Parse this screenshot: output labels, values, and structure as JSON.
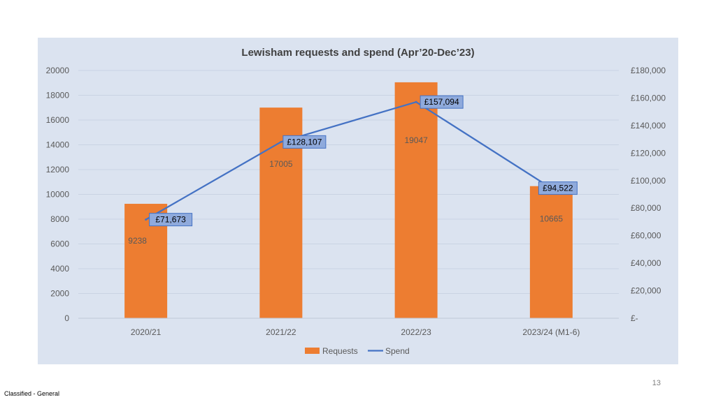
{
  "chart_data": {
    "type": "bar",
    "title": "Lewisham requests and spend (Apr’20-Dec’23)",
    "categories": [
      "2020/21",
      "2021/22",
      "2022/23",
      "2023/24 (M1-6)"
    ],
    "series": [
      {
        "name": "Requests",
        "type": "bar",
        "axis": "left",
        "values": [
          9238,
          17005,
          19047,
          10665
        ],
        "labels": [
          "9238",
          "17005",
          "19047",
          "10665"
        ],
        "color": "#ed7d31"
      },
      {
        "name": "Spend",
        "type": "line",
        "axis": "right",
        "values": [
          71673,
          128107,
          157094,
          94522
        ],
        "labels": [
          "£71,673",
          "£128,107",
          "£157,094",
          "£94,522"
        ],
        "color": "#4472c4"
      }
    ],
    "y_left": {
      "lim": [
        0,
        20000
      ],
      "ticks": [
        0,
        2000,
        4000,
        6000,
        8000,
        10000,
        12000,
        14000,
        16000,
        18000,
        20000
      ],
      "tick_labels": [
        "0",
        "2000",
        "4000",
        "6000",
        "8000",
        "10000",
        "12000",
        "14000",
        "16000",
        "18000",
        "20000"
      ]
    },
    "y_right": {
      "lim": [
        0,
        180000
      ],
      "ticks": [
        0,
        20000,
        40000,
        60000,
        80000,
        100000,
        120000,
        140000,
        160000,
        180000
      ],
      "tick_labels": [
        "£-",
        "£20,000",
        "£40,000",
        "£60,000",
        "£80,000",
        "£100,000",
        "£120,000",
        "£140,000",
        "£160,000",
        "£180,000"
      ]
    },
    "grid": true,
    "legend": "bottom",
    "colors": {
      "panel_background": "#dbe3f0",
      "gridline": "#c9d3e3",
      "label_box_fill": "#8faadc",
      "label_box_border": "#4472c4",
      "text": "#595959",
      "title": "#404040"
    }
  },
  "footer": {
    "page_number": "13",
    "classification": "Classified - General"
  }
}
